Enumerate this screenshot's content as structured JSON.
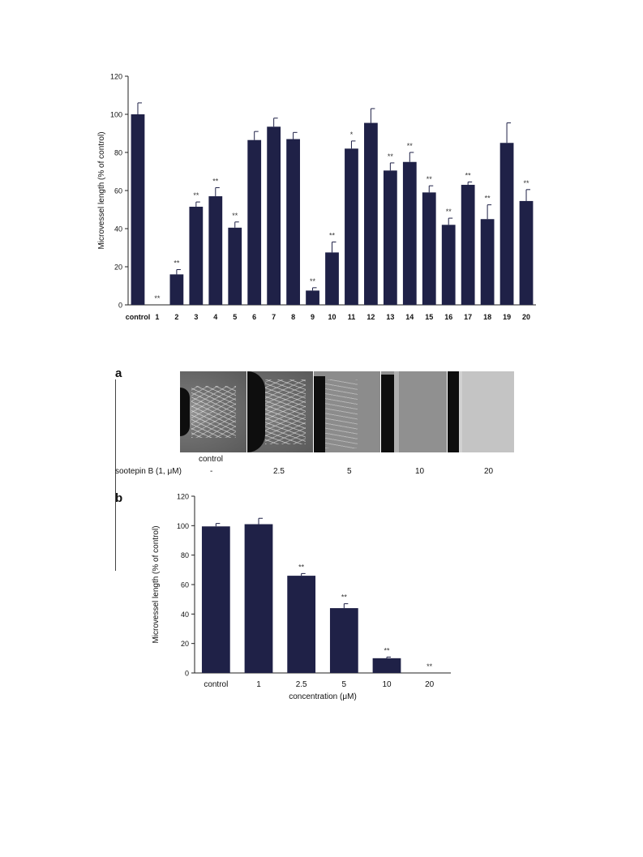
{
  "chart_data": [
    {
      "type": "bar",
      "title": "",
      "ylabel": "Microvessel length (% of control)",
      "xlabel": "",
      "ylim": [
        0,
        120
      ],
      "yticks": [
        "0",
        "20",
        "40",
        "60",
        "80",
        "100",
        "120"
      ],
      "categories": [
        "control",
        "1",
        "2",
        "3",
        "4",
        "5",
        "6",
        "7",
        "8",
        "9",
        "10",
        "11",
        "12",
        "13",
        "14",
        "15",
        "16",
        "17",
        "18",
        "19",
        "20"
      ],
      "values": [
        100,
        0,
        16,
        51.5,
        57,
        40.5,
        86.5,
        93.5,
        87,
        7.5,
        27.5,
        82,
        95.5,
        70.5,
        75,
        59,
        42,
        63,
        45,
        85,
        54.5
      ],
      "errors": [
        6,
        0,
        2.5,
        2.5,
        4.5,
        3,
        4.5,
        4.5,
        3.5,
        1.5,
        5.5,
        4,
        7.5,
        4,
        5,
        3.5,
        3.5,
        1.5,
        7.5,
        10.5,
        6
      ],
      "significance": [
        "",
        "**",
        "**",
        "**",
        "**",
        "**",
        "",
        "",
        "",
        "**",
        "**",
        "*",
        "",
        "**",
        "**",
        "**",
        "**",
        "**",
        "**",
        "",
        "**"
      ]
    },
    {
      "type": "bar",
      "title": "",
      "ylabel": "Microvessel length (% of control)",
      "xlabel": "concentration (μM)",
      "ylim": [
        0,
        120
      ],
      "yticks": [
        "0",
        "20",
        "40",
        "60",
        "80",
        "100",
        "120"
      ],
      "categories": [
        "control",
        "1",
        "2.5",
        "5",
        "10",
        "20"
      ],
      "values": [
        99.5,
        101,
        66,
        44,
        10,
        0
      ],
      "errors": [
        2,
        4,
        1.5,
        3,
        0.8,
        0
      ],
      "significance": [
        "",
        "",
        "**",
        "**",
        "**",
        "**"
      ]
    }
  ],
  "panel_a": {
    "letter": "a",
    "image_label": "control",
    "row_label": "sootepin B (1, μM)",
    "concentrations": [
      "-",
      "2.5",
      "5",
      "10",
      "20"
    ]
  },
  "panel_b": {
    "letter": "b"
  },
  "colors": {
    "bar": "#1f2147"
  }
}
